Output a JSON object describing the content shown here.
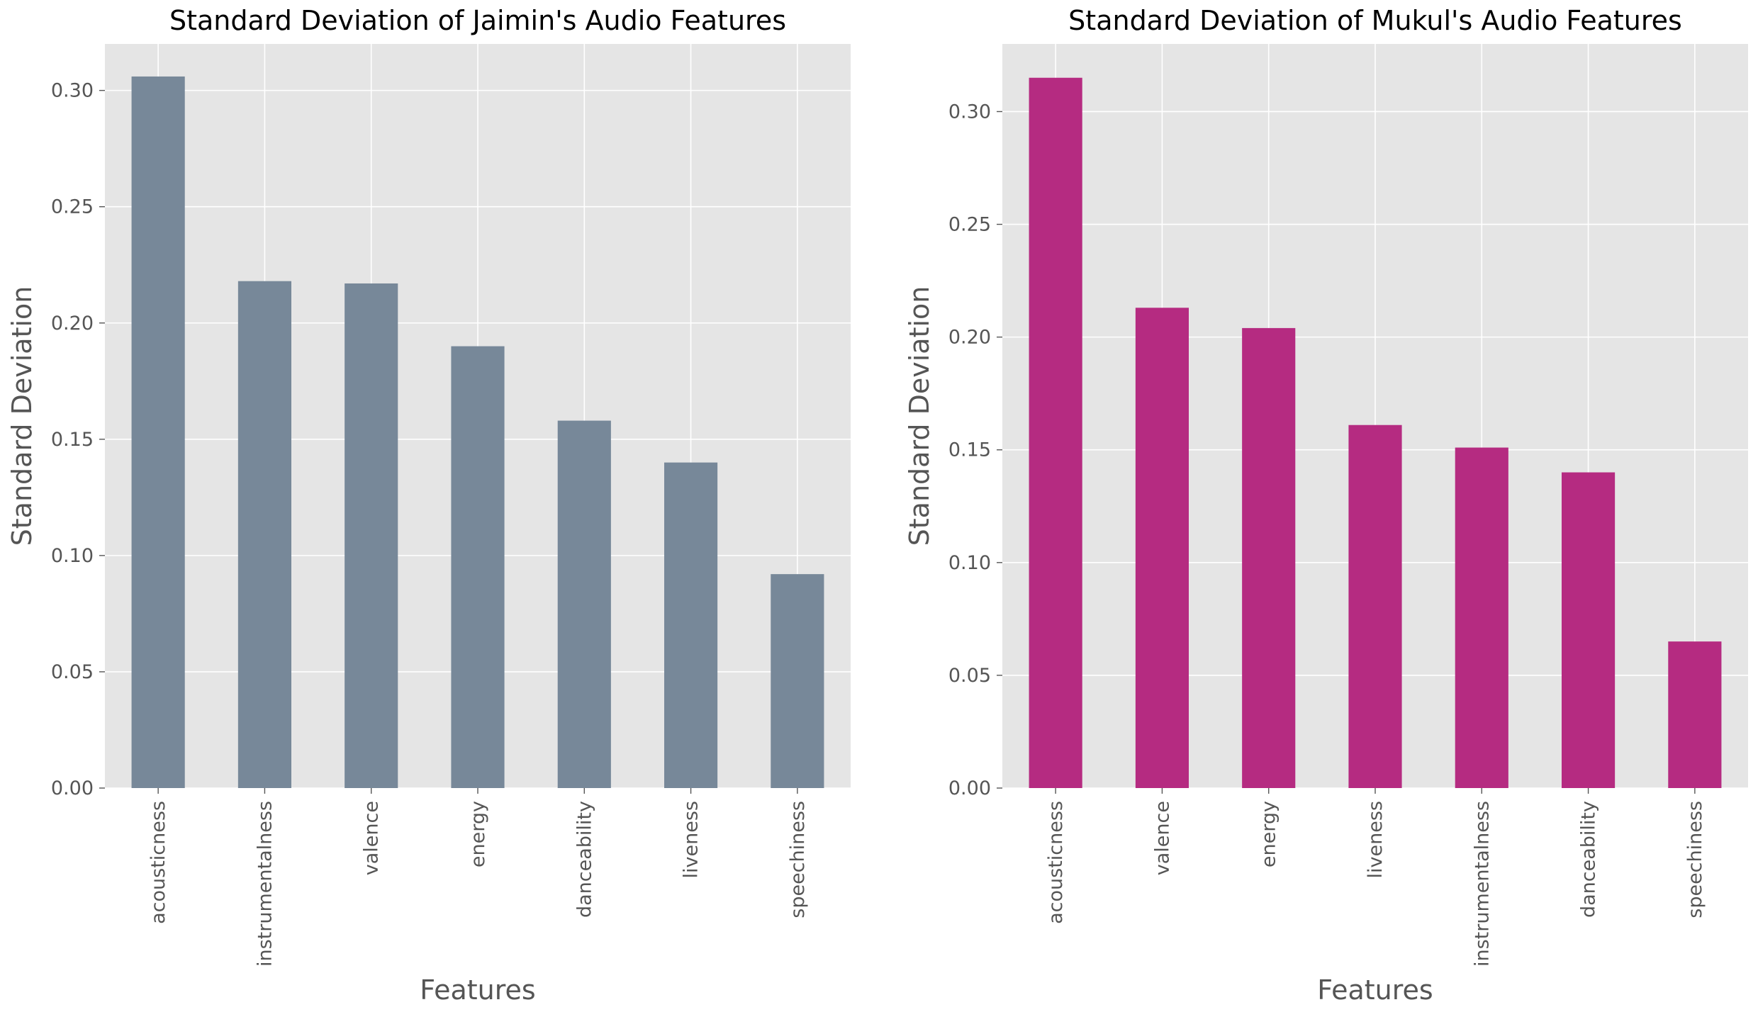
{
  "chart_data": [
    {
      "type": "bar",
      "title": "Standard Deviation of Jaimin's Audio Features",
      "xlabel": "Features",
      "ylabel": "Standard Deviation",
      "categories": [
        "acousticness",
        "instrumentalness",
        "valence",
        "energy",
        "danceability",
        "liveness",
        "speechiness"
      ],
      "values": [
        0.306,
        0.218,
        0.217,
        0.19,
        0.158,
        0.14,
        0.092
      ],
      "ylim": [
        0,
        0.32
      ],
      "yticks": [
        0.0,
        0.05,
        0.1,
        0.15,
        0.2,
        0.25,
        0.3
      ],
      "ytick_labels": [
        "0.00",
        "0.05",
        "0.10",
        "0.15",
        "0.20",
        "0.25",
        "0.30"
      ],
      "grid": true,
      "bar_color": "#778899",
      "background_color": "#e5e5e5"
    },
    {
      "type": "bar",
      "title": "Standard Deviation of Mukul's Audio Features",
      "xlabel": "Features",
      "ylabel": "Standard Deviation",
      "categories": [
        "acousticness",
        "valence",
        "energy",
        "liveness",
        "instrumentalness",
        "danceability",
        "speechiness"
      ],
      "values": [
        0.315,
        0.213,
        0.204,
        0.161,
        0.151,
        0.14,
        0.065
      ],
      "ylim": [
        0,
        0.33
      ],
      "yticks": [
        0.0,
        0.05,
        0.1,
        0.15,
        0.2,
        0.25,
        0.3
      ],
      "ytick_labels": [
        "0.00",
        "0.05",
        "0.10",
        "0.15",
        "0.20",
        "0.25",
        "0.30"
      ],
      "grid": true,
      "bar_color": "#b52b81",
      "background_color": "#e5e5e5"
    }
  ]
}
